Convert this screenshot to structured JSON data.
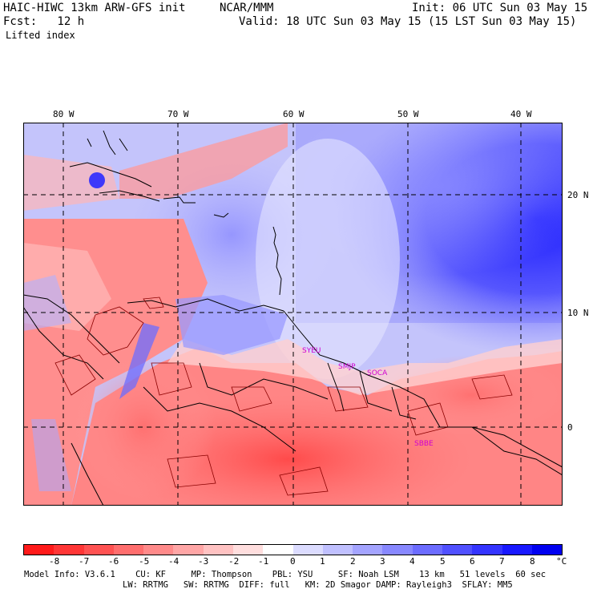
{
  "header": {
    "model_title": "HAIC-HIWC 13km ARW-GFS init",
    "org": "NCAR/MMM",
    "init": "Init: 06 UTC Sun 03 May 15",
    "fcst": "Fcst:   12 h",
    "valid": "Valid: 18 UTC Sun 03 May 15 (15 LST Sun 03 May 15)",
    "field": "Lifted index"
  },
  "map": {
    "lon_labels": [
      "80 W",
      "70 W",
      "60 W",
      "50 W",
      "40 W"
    ],
    "lat_labels": [
      "20 N",
      "10 N",
      "0"
    ],
    "stations": [
      "SYEU",
      "SMJP",
      "SOCA",
      "SBBE"
    ]
  },
  "colorbar": {
    "labels": [
      "-8",
      "-7",
      "-6",
      "-5",
      "-4",
      "-3",
      "-2",
      "-1",
      "0",
      "1",
      "2",
      "3",
      "4",
      "5",
      "6",
      "7",
      "8"
    ],
    "unit": "°C",
    "colors": [
      "#ff1a1a",
      "#ff3636",
      "#ff5252",
      "#ff6e6e",
      "#ff8a8a",
      "#ffa6a6",
      "#ffc2c2",
      "#ffdede",
      "#ffffff",
      "#dcdcff",
      "#c0c0ff",
      "#a4a4ff",
      "#8888ff",
      "#6c6cff",
      "#5050ff",
      "#3434ff",
      "#1818ff",
      "#0000f0"
    ]
  },
  "footer": {
    "line1": "Model Info: V3.6.1    CU: KF     MP: Thompson    PBL: YSU     SF: Noah LSM    13 km   51 levels  60 sec",
    "line2": "LW: RRTMG   SW: RRTMG  DIFF: full   KM: 2D Smagor DAMP: Rayleigh3  SFLAY: MM5"
  }
}
